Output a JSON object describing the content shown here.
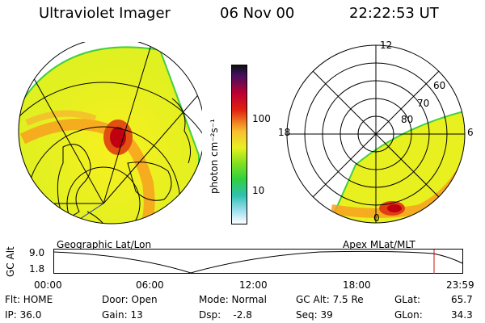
{
  "header": {
    "title": "Ultraviolet Imager",
    "date": "06 Nov 00",
    "time": "22:22:53 UT"
  },
  "colorbar": {
    "unit_label": "photon cm⁻²s⁻¹",
    "tick_high": "100",
    "tick_low": "10"
  },
  "polar_plot": {
    "mlt_12": "12",
    "mlt_18": "18",
    "mlt_6": "6",
    "mlt_0": "0",
    "lat_60": "60",
    "lat_70": "70",
    "lat_80": "80"
  },
  "map_labels": {
    "left": "Geographic Lat/Lon",
    "right": "Apex MLat/MLT"
  },
  "altitude_plot": {
    "axis_label": "GC Alt",
    "y_high": "9.0",
    "y_low": "1.8",
    "x_ticks": [
      "00:00",
      "06:00",
      "12:00",
      "18:00",
      "23:59"
    ]
  },
  "status": {
    "flt": "Flt: HOME",
    "ip": "IP: 36.0",
    "door": "Door: Open",
    "gain": "Gain: 13",
    "mode": "Mode: Normal",
    "dsp": "Dsp:    -2.8",
    "gc_alt": "GC Alt: 7.5 Re",
    "seq": "Seq: 39",
    "glat_label": "GLat:",
    "glat_value": "65.7",
    "glon_label": "GLon:",
    "glon_value": "34.3"
  },
  "colors": {
    "oval_yellow": "#e8f020",
    "oval_orange": "#f8a020",
    "oval_red": "#d01010",
    "edge_green": "#40d040"
  }
}
